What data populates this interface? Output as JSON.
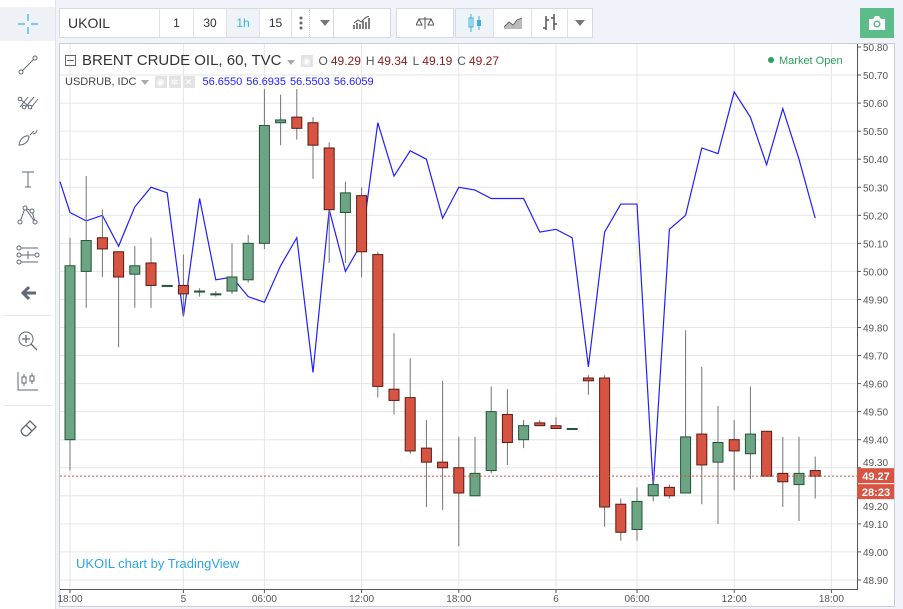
{
  "toolbar": {
    "symbol": "UKOIL",
    "intervals": [
      "1",
      "30",
      "1h",
      "15"
    ],
    "active_interval": "1h",
    "icons": [
      "more-vertical-icon",
      "dropdown-arrow-icon",
      "indicators-icon",
      "compare-icon",
      "candles-icon",
      "area-chart-icon",
      "bars-icon",
      "dropdown-arrow-icon"
    ],
    "camera_icon": "camera-icon",
    "camera_color": "#5cbd8a"
  },
  "left_toolbar": {
    "icons": [
      "crosshair-icon",
      "trend-line-icon",
      "pitchfork-icon",
      "brush-icon",
      "text-icon",
      "pattern-icon",
      "measure-icon",
      "back-arrow-icon",
      "zoom-in-icon",
      "long-position-icon",
      "magnet-icon"
    ]
  },
  "legend": {
    "main_title": "BRENT CRUDE OIL, 60, TVC",
    "o_label": "O",
    "o": "49.29",
    "h_label": "H",
    "h": "49.34",
    "l_label": "L",
    "l": "49.19",
    "c_label": "C",
    "c": "49.27",
    "compare_title": "USDRUB, IDC",
    "compare_values": [
      "56.6550",
      "56.6935",
      "56.5503",
      "56.6059"
    ],
    "market_status": "Market Open",
    "watermark": "UKOIL chart by TradingView"
  },
  "price_axis": {
    "last_price": "49.27",
    "countdown": "28:23"
  },
  "chart_data": {
    "type": "candlestick",
    "title": "BRENT CRUDE OIL, 60, TVC",
    "ylim": [
      48.9,
      50.8
    ],
    "yticks": [
      "50.80",
      "50.70",
      "50.60",
      "50.50",
      "50.40",
      "50.30",
      "50.20",
      "50.10",
      "50.00",
      "49.90",
      "49.80",
      "49.70",
      "49.60",
      "49.50",
      "49.40",
      "49.30",
      "49.20",
      "49.10",
      "49.00",
      "48.90"
    ],
    "xticks": [
      {
        "label": "18:00",
        "bar": 0
      },
      {
        "label": "5",
        "bar": 7
      },
      {
        "label": "06:00",
        "bar": 12
      },
      {
        "label": "12:00",
        "bar": 18
      },
      {
        "label": "18:00",
        "bar": 24
      },
      {
        "label": "6",
        "bar": 30
      },
      {
        "label": "06:00",
        "bar": 35
      },
      {
        "label": "12:00",
        "bar": 41
      },
      {
        "label": "18:00",
        "bar": 47
      }
    ],
    "grid": true,
    "up_color": "#6ba583",
    "down_color": "#d75442",
    "compare_color": "#1f1fff",
    "ohlc": [
      [
        49.4,
        50.12,
        49.29,
        50.02
      ],
      [
        50.0,
        50.34,
        49.87,
        50.11
      ],
      [
        50.12,
        50.22,
        49.98,
        50.08
      ],
      [
        50.07,
        50.07,
        49.73,
        49.98
      ],
      [
        49.99,
        50.09,
        49.87,
        50.02
      ],
      [
        50.03,
        50.12,
        49.87,
        49.95
      ],
      [
        49.95,
        49.95,
        49.95,
        49.95
      ],
      [
        49.95,
        50.06,
        49.84,
        49.92
      ],
      [
        49.93,
        49.94,
        49.91,
        49.93
      ],
      [
        49.92,
        49.93,
        49.91,
        49.92
      ],
      [
        49.93,
        50.1,
        49.92,
        49.98
      ],
      [
        49.97,
        50.13,
        49.96,
        50.1
      ],
      [
        50.1,
        50.65,
        50.08,
        50.52
      ],
      [
        50.53,
        50.63,
        50.45,
        50.54
      ],
      [
        50.55,
        50.65,
        50.47,
        50.51
      ],
      [
        50.53,
        50.55,
        50.33,
        50.45
      ],
      [
        50.44,
        50.46,
        50.03,
        50.22
      ],
      [
        50.21,
        50.32,
        50.03,
        50.28
      ],
      [
        50.27,
        50.3,
        49.98,
        50.07
      ],
      [
        50.06,
        50.07,
        49.55,
        49.59
      ],
      [
        49.58,
        49.78,
        49.49,
        49.54
      ],
      [
        49.55,
        49.69,
        49.35,
        49.36
      ],
      [
        49.37,
        49.47,
        49.16,
        49.32
      ],
      [
        49.32,
        49.61,
        49.15,
        49.3
      ],
      [
        49.3,
        49.41,
        49.02,
        49.21
      ],
      [
        49.2,
        49.41,
        49.2,
        49.28
      ],
      [
        49.29,
        49.59,
        49.28,
        49.5
      ],
      [
        49.49,
        49.58,
        49.31,
        49.39
      ],
      [
        49.4,
        49.47,
        49.37,
        49.45
      ],
      [
        49.46,
        49.47,
        49.45,
        49.45
      ],
      [
        49.45,
        49.48,
        49.44,
        49.44
      ],
      [
        49.44,
        49.44,
        49.44,
        49.44
      ],
      [
        49.62,
        49.63,
        49.56,
        49.61
      ],
      [
        49.62,
        49.63,
        49.09,
        49.16
      ],
      [
        49.17,
        49.19,
        49.04,
        49.07
      ],
      [
        49.08,
        49.23,
        49.04,
        49.18
      ],
      [
        49.2,
        49.27,
        49.18,
        49.24
      ],
      [
        49.23,
        49.24,
        49.19,
        49.2
      ],
      [
        49.21,
        49.79,
        49.21,
        49.41
      ],
      [
        49.42,
        49.66,
        49.17,
        49.31
      ],
      [
        49.32,
        49.52,
        49.1,
        49.39
      ],
      [
        49.4,
        49.47,
        49.22,
        49.36
      ],
      [
        49.35,
        49.59,
        49.26,
        49.42
      ],
      [
        49.43,
        49.43,
        49.27,
        49.27
      ],
      [
        49.28,
        49.41,
        49.16,
        49.25
      ],
      [
        49.24,
        49.41,
        49.11,
        49.28
      ],
      [
        49.29,
        49.34,
        49.19,
        49.27
      ]
    ],
    "compare_series": {
      "name": "USDRUB, IDC",
      "values_on_price_scale": [
        50.21,
        50.18,
        50.2,
        50.09,
        50.23,
        50.3,
        50.28,
        49.84,
        50.26,
        49.97,
        49.98,
        49.91,
        49.89,
        50.02,
        50.12,
        49.64,
        50.22,
        50.0,
        50.1,
        50.53,
        50.34,
        50.43,
        50.4,
        50.19,
        50.3,
        50.29,
        50.26,
        50.26,
        50.26,
        50.14,
        50.15,
        50.12,
        49.66,
        50.14,
        50.24,
        50.24,
        49.23,
        50.15,
        50.2,
        50.44,
        50.42,
        50.64,
        50.55,
        50.38,
        50.58,
        50.4,
        50.19
      ]
    }
  }
}
